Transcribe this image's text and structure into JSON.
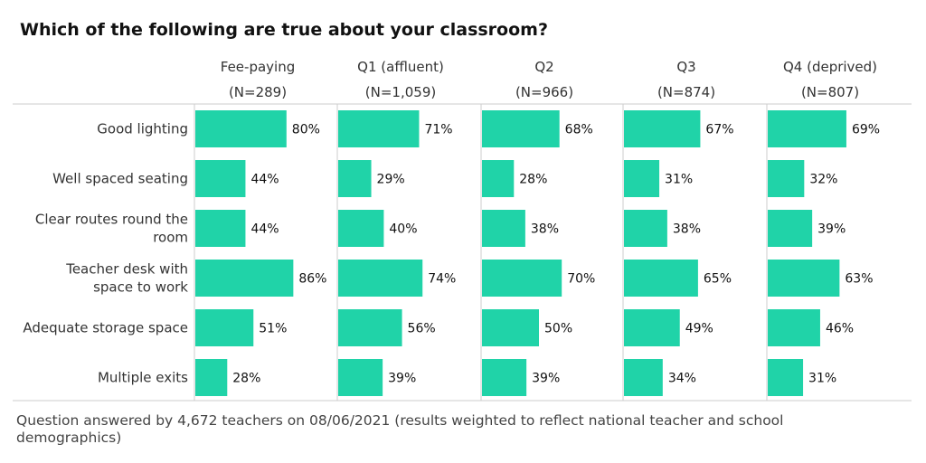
{
  "title": "Which of the following are true about your classroom?",
  "footnote": "Question answered by 4,672 teachers on 08/06/2021 (results weighted to reflect national teacher and school demographics)",
  "colors": {
    "bar": "#20d3a8",
    "grid": "#cccccc"
  },
  "chart_data": {
    "type": "bar",
    "orientation": "horizontal",
    "categories": [
      "Good lighting",
      "Well spaced seating",
      "Clear routes round the room",
      "Teacher desk with space to work",
      "Adequate storage space",
      "Multiple exits"
    ],
    "series": [
      {
        "name": "Fee-paying",
        "n": "(N=289)",
        "values": [
          80,
          44,
          44,
          86,
          51,
          28
        ]
      },
      {
        "name": "Q1 (affluent)",
        "n": "(N=1,059)",
        "values": [
          71,
          29,
          40,
          74,
          56,
          39
        ]
      },
      {
        "name": "Q2",
        "n": "(N=966)",
        "values": [
          68,
          28,
          38,
          70,
          50,
          39
        ]
      },
      {
        "name": "Q3",
        "n": "(N=874)",
        "values": [
          67,
          31,
          38,
          65,
          49,
          34
        ]
      },
      {
        "name": "Q4 (deprived)",
        "n": "(N=807)",
        "values": [
          69,
          32,
          39,
          63,
          46,
          31
        ]
      }
    ],
    "value_suffix": "%",
    "xlim": [
      0,
      100
    ],
    "layout": "small-multiples",
    "legend": "none"
  }
}
